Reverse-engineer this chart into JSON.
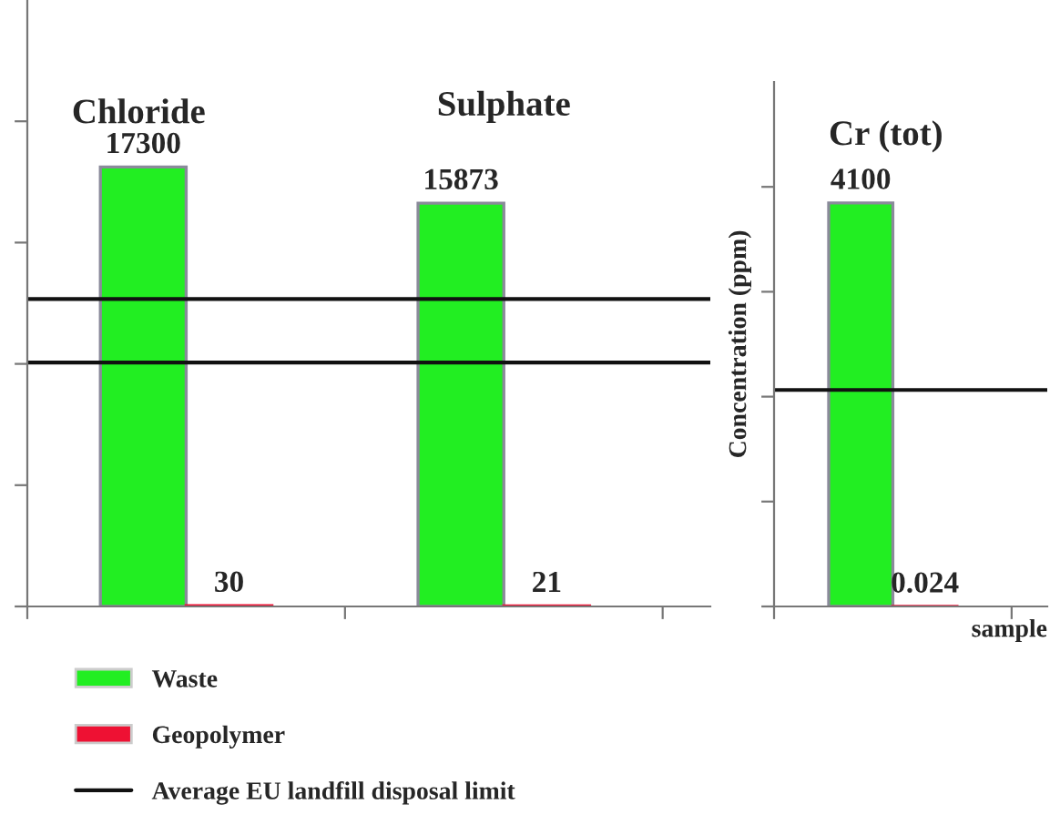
{
  "chart_data": [
    {
      "type": "bar",
      "data_labels": true,
      "categories": [
        "Chloride",
        "Sulphate"
      ],
      "tick_labels": false,
      "legend": "bottom",
      "series": [
        {
          "name": "Waste",
          "color": "#22ee22",
          "values": [
            17300,
            15873
          ]
        },
        {
          "name": "Geopolymer",
          "color": "#ee1133",
          "values": [
            30,
            21
          ]
        }
      ],
      "ref_lines": [
        {
          "axis": "y",
          "value": 12100,
          "label": "Average EU landfill disposal limit",
          "color": "#111111"
        },
        {
          "axis": "y",
          "value": 9600,
          "color": "#111111"
        }
      ]
    },
    {
      "type": "bar",
      "data_labels": true,
      "title": "Cr (tot)",
      "ylabel": "Concentration (ppm)",
      "xlabel": "sample",
      "categories": [
        null
      ],
      "tick_labels": false,
      "series": [
        {
          "color": "#22ee22",
          "values": [
            4100
          ]
        },
        {
          "color": "#ee1133",
          "values": [
            0.024
          ]
        }
      ],
      "ref_lines": [
        {
          "axis": "y",
          "value": 2200,
          "color": "#111111"
        }
      ]
    }
  ]
}
